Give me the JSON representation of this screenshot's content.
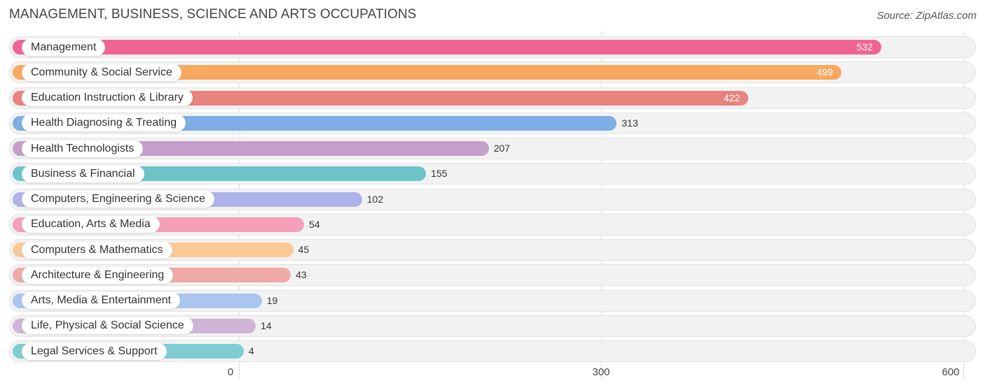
{
  "title": "MANAGEMENT, BUSINESS, SCIENCE AND ARTS OCCUPATIONS",
  "source": "Source: ZipAtlas.com",
  "chart_data": {
    "type": "bar",
    "orientation": "horizontal",
    "categories": [
      "Management",
      "Community & Social Service",
      "Education Instruction & Library",
      "Health Diagnosing & Treating",
      "Health Technologists",
      "Business & Financial",
      "Computers, Engineering & Science",
      "Education, Arts & Media",
      "Computers & Mathematics",
      "Architecture & Engineering",
      "Arts, Media & Entertainment",
      "Life, Physical & Social Science",
      "Legal Services & Support"
    ],
    "values": [
      532,
      499,
      422,
      313,
      207,
      155,
      102,
      54,
      45,
      43,
      19,
      14,
      4
    ],
    "colors": [
      "#f06493",
      "#f7a95f",
      "#e8837e",
      "#7eaee3",
      "#c39fca",
      "#6cc4c9",
      "#adb2ea",
      "#f5a0bb",
      "#f9c997",
      "#f0aaa6",
      "#a9c7ee",
      "#cfb5d6",
      "#7fcdd2"
    ],
    "xticks": [
      0,
      300,
      600
    ],
    "xlim": [
      0,
      600
    ],
    "grid": true
  }
}
